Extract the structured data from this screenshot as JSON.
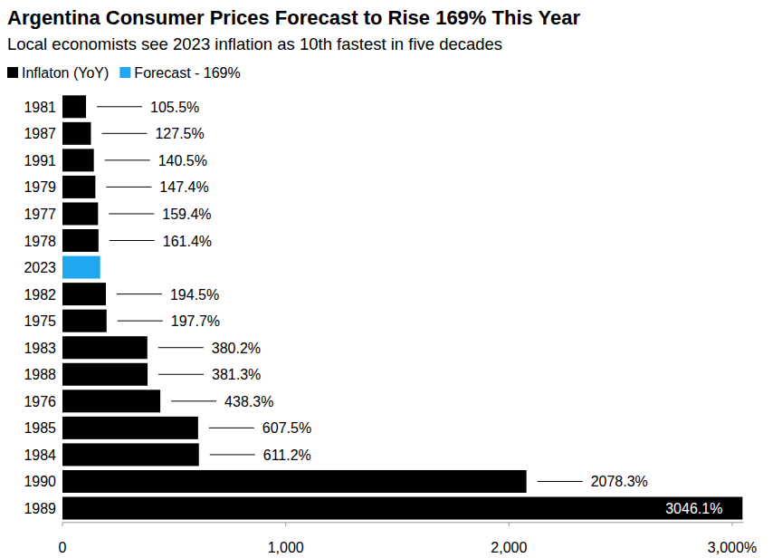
{
  "chart_data": {
    "type": "bar",
    "orientation": "horizontal",
    "title": "Argentina Consumer Prices Forecast to Rise 169% This Year",
    "subtitle": "Local economists see 2023 inflation as 10th fastest in five decades",
    "categories": [
      "1981",
      "1987",
      "1991",
      "1979",
      "1977",
      "1978",
      "2023",
      "1982",
      "1975",
      "1983",
      "1988",
      "1976",
      "1985",
      "1984",
      "1990",
      "1989"
    ],
    "series": [
      {
        "name": "Inflaton (YoY)",
        "color": "#000000",
        "values": [
          105.5,
          127.5,
          140.5,
          147.4,
          159.4,
          161.4,
          null,
          194.5,
          197.7,
          380.2,
          381.3,
          438.3,
          607.5,
          611.2,
          2078.3,
          3046.1
        ],
        "value_labels": [
          "105.5%",
          "127.5%",
          "140.5%",
          "147.4%",
          "159.4%",
          "161.4%",
          null,
          "194.5%",
          "197.7%",
          "380.2%",
          "381.3%",
          "438.3%",
          "607.5%",
          "611.2%",
          "2078.3%",
          "3046.1%"
        ]
      },
      {
        "name": "Forecast - 169%",
        "color": "#1fa8f0",
        "values": [
          null,
          null,
          null,
          null,
          null,
          null,
          169,
          null,
          null,
          null,
          null,
          null,
          null,
          null,
          null,
          null
        ]
      }
    ],
    "xlim": [
      0,
      3050
    ],
    "xticks": [
      0,
      {
        "value": 1000,
        "label": "1,000"
      },
      {
        "value": 2000,
        "label": "2,000"
      },
      {
        "value": 3000,
        "label": "3,000%"
      }
    ],
    "grid": false,
    "legend": "top-left",
    "data_labels": true
  }
}
